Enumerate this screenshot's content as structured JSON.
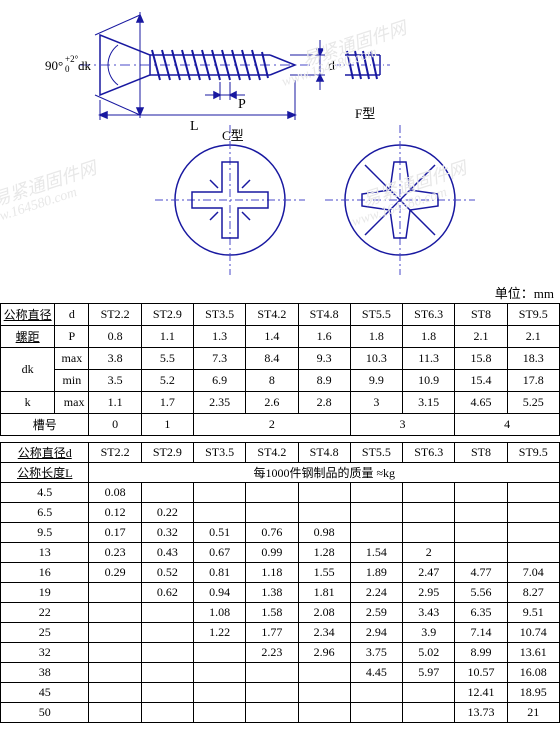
{
  "diagram": {
    "angle_label": "90°+2° dk",
    "dim_L": "L",
    "dim_P": "P",
    "dim_d": "d",
    "type_C": "C型",
    "type_F": "F型",
    "watermarks": [
      "易紧通固件网",
      "www.164580.com",
      "易紧通固件网",
      "www.164580.com",
      "易紧通固件网",
      "www.164580.com"
    ],
    "stroke_color": "#1818a0",
    "dash_color": "#4a4ac8"
  },
  "unit_label": "单位：mm",
  "spec_table": {
    "headers": {
      "diameter": "公称直径",
      "d": "d",
      "pitch": "螺距",
      "P": "P",
      "dk": "dk",
      "max": "max",
      "min": "min",
      "k": "k",
      "slot": "槽号"
    },
    "sizes": [
      "ST2.2",
      "ST2.9",
      "ST3.5",
      "ST4.2",
      "ST4.8",
      "ST5.5",
      "ST6.3",
      "ST8",
      "ST9.5"
    ],
    "P": [
      "0.8",
      "1.1",
      "1.3",
      "1.4",
      "1.6",
      "1.8",
      "1.8",
      "2.1",
      "2.1"
    ],
    "dk_max": [
      "3.8",
      "5.5",
      "7.3",
      "8.4",
      "9.3",
      "10.3",
      "11.3",
      "15.8",
      "18.3"
    ],
    "dk_min": [
      "3.5",
      "5.2",
      "6.9",
      "8",
      "8.9",
      "9.9",
      "10.9",
      "15.4",
      "17.8"
    ],
    "k_max": [
      "1.1",
      "1.7",
      "2.35",
      "2.6",
      "2.8",
      "3",
      "3.15",
      "4.65",
      "5.25"
    ],
    "slot_spans": [
      {
        "label": "0",
        "span": 1
      },
      {
        "label": "1",
        "span": 1
      },
      {
        "label": "2",
        "span": 3
      },
      {
        "label": "3",
        "span": 2
      },
      {
        "label": "4",
        "span": 2
      }
    ]
  },
  "mass_table": {
    "header_diam": "公称直径d",
    "header_len": "公称长度L",
    "subtitle": "每1000件钢制品的质量  ≈kg",
    "sizes": [
      "ST2.2",
      "ST2.9",
      "ST3.5",
      "ST4.2",
      "ST4.8",
      "ST5.5",
      "ST6.3",
      "ST8",
      "ST9.5"
    ],
    "rows": [
      {
        "L": "4.5",
        "v": [
          "0.08",
          "",
          "",
          "",
          "",
          "",
          "",
          "",
          ""
        ]
      },
      {
        "L": "6.5",
        "v": [
          "0.12",
          "0.22",
          "",
          "",
          "",
          "",
          "",
          "",
          ""
        ]
      },
      {
        "L": "9.5",
        "v": [
          "0.17",
          "0.32",
          "0.51",
          "0.76",
          "0.98",
          "",
          "",
          "",
          ""
        ]
      },
      {
        "L": "13",
        "v": [
          "0.23",
          "0.43",
          "0.67",
          "0.99",
          "1.28",
          "1.54",
          "2",
          "",
          ""
        ]
      },
      {
        "L": "16",
        "v": [
          "0.29",
          "0.52",
          "0.81",
          "1.18",
          "1.55",
          "1.89",
          "2.47",
          "4.77",
          "7.04"
        ]
      },
      {
        "L": "19",
        "v": [
          "",
          "0.62",
          "0.94",
          "1.38",
          "1.81",
          "2.24",
          "2.95",
          "5.56",
          "8.27"
        ]
      },
      {
        "L": "22",
        "v": [
          "",
          "",
          "1.08",
          "1.58",
          "2.08",
          "2.59",
          "3.43",
          "6.35",
          "9.51"
        ]
      },
      {
        "L": "25",
        "v": [
          "",
          "",
          "1.22",
          "1.77",
          "2.34",
          "2.94",
          "3.9",
          "7.14",
          "10.74"
        ]
      },
      {
        "L": "32",
        "v": [
          "",
          "",
          "",
          "2.23",
          "2.96",
          "3.75",
          "5.02",
          "8.99",
          "13.61"
        ]
      },
      {
        "L": "38",
        "v": [
          "",
          "",
          "",
          "",
          "",
          "4.45",
          "5.97",
          "10.57",
          "16.08"
        ]
      },
      {
        "L": "45",
        "v": [
          "",
          "",
          "",
          "",
          "",
          "",
          "",
          "12.41",
          "18.95"
        ]
      },
      {
        "L": "50",
        "v": [
          "",
          "",
          "",
          "",
          "",
          "",
          "",
          "13.73",
          "21"
        ]
      }
    ]
  }
}
